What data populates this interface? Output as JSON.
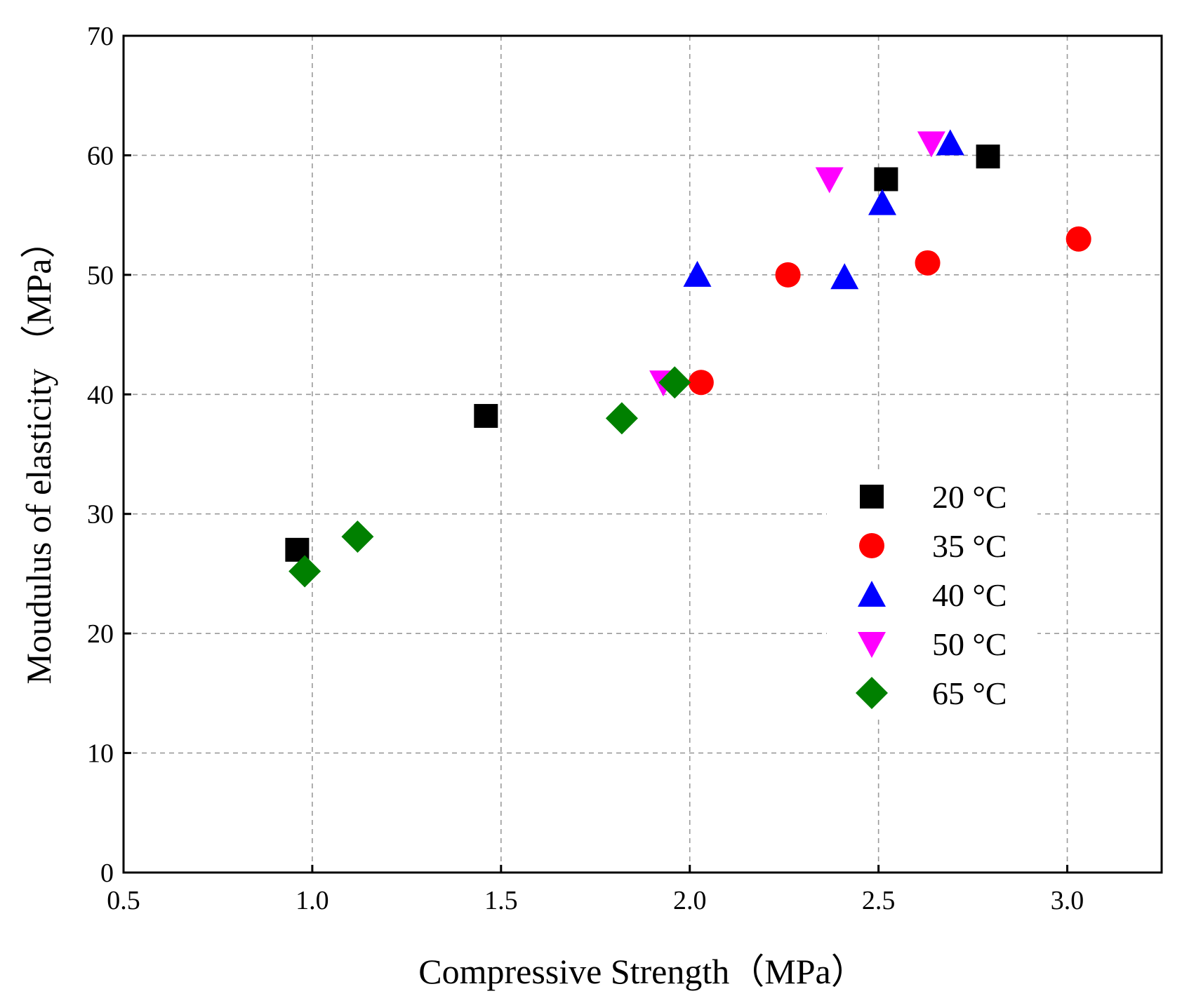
{
  "chart_data": {
    "type": "scatter",
    "title": "",
    "xlabel": "Compressive Strength（MPa）",
    "ylabel": "Moudulus of elasticity （MPa）",
    "xlim": [
      0.5,
      3.25
    ],
    "ylim": [
      0,
      70
    ],
    "xticks": [
      0.5,
      1.0,
      1.5,
      2.0,
      2.5,
      3.0
    ],
    "xtick_labels": [
      "0.5",
      "1.0",
      "1.5",
      "2.0",
      "2.5",
      "3.0"
    ],
    "yticks": [
      0,
      10,
      20,
      30,
      40,
      50,
      60,
      70
    ],
    "ytick_labels": [
      "0",
      "10",
      "20",
      "30",
      "40",
      "50",
      "60",
      "70"
    ],
    "grid": true,
    "legend_position": "right-middle",
    "series": [
      {
        "name": "20 °C",
        "marker": "square",
        "color": "#000000",
        "points": [
          [
            0.96,
            27.0
          ],
          [
            1.46,
            38.2
          ],
          [
            2.52,
            58.0
          ],
          [
            2.79,
            59.9
          ]
        ]
      },
      {
        "name": "35 °C",
        "marker": "circle",
        "color": "#ff0000",
        "points": [
          [
            2.03,
            41.0
          ],
          [
            2.26,
            50.0
          ],
          [
            2.63,
            51.0
          ],
          [
            3.03,
            53.0
          ]
        ]
      },
      {
        "name": "40 °C",
        "marker": "triangle-up",
        "color": "#0000ff",
        "points": [
          [
            2.02,
            50.0
          ],
          [
            2.41,
            49.8
          ],
          [
            2.51,
            56.0
          ],
          [
            2.69,
            61.0
          ]
        ]
      },
      {
        "name": "50 °C",
        "marker": "triangle-down",
        "color": "#ff00ff",
        "points": [
          [
            1.93,
            41.0
          ],
          [
            2.37,
            58.0
          ],
          [
            2.64,
            61.0
          ]
        ]
      },
      {
        "name": "65 °C",
        "marker": "diamond",
        "color": "#008000",
        "points": [
          [
            0.98,
            25.2
          ],
          [
            1.12,
            28.1
          ],
          [
            1.82,
            38.0
          ],
          [
            1.96,
            41.0
          ]
        ]
      }
    ]
  }
}
